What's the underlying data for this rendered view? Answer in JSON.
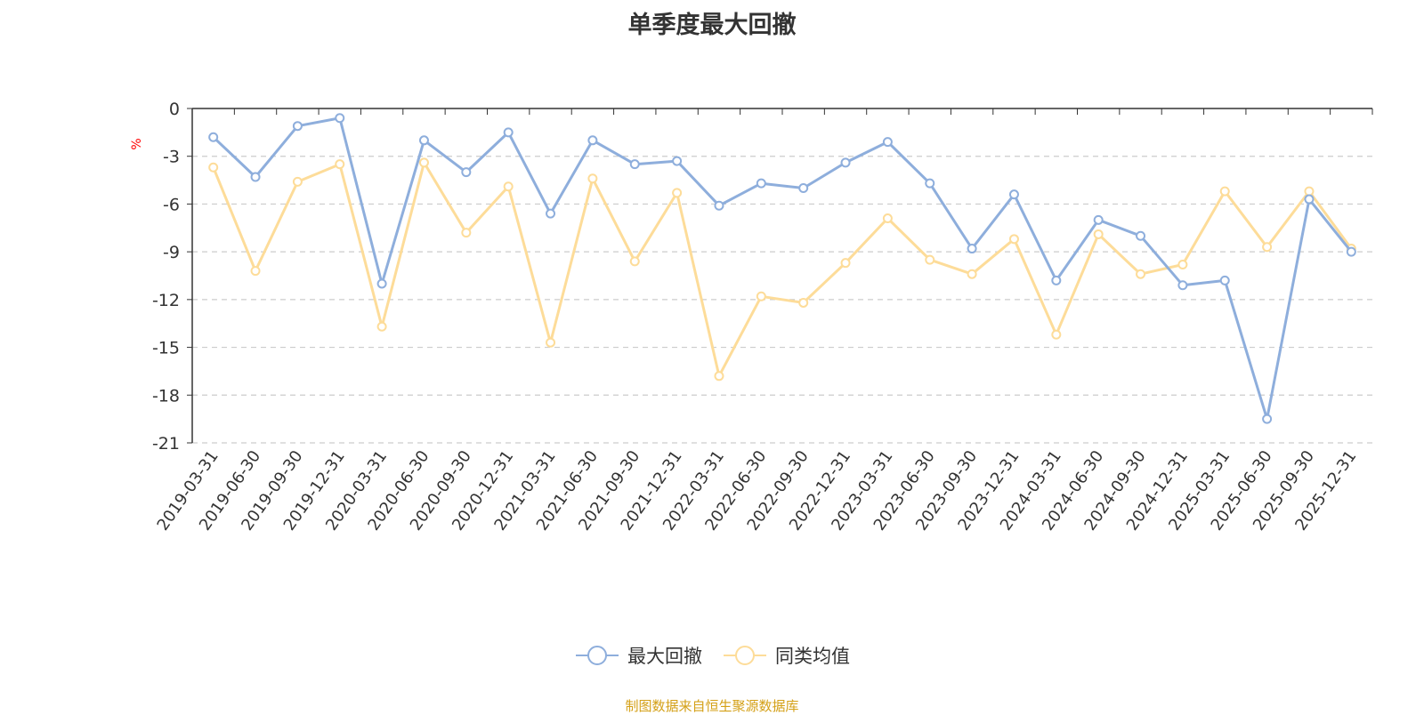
{
  "chart_data": {
    "type": "line",
    "title": "单季度最大回撤",
    "ylabel": "%",
    "xlabel": "",
    "ylim": [
      -21,
      0
    ],
    "yticks": [
      0,
      -3,
      -6,
      -9,
      -12,
      -15,
      -18,
      -21
    ],
    "grid": true,
    "legend_position": "bottom",
    "categories": [
      "2019-03-31",
      "2019-06-30",
      "2019-09-30",
      "2019-12-31",
      "2020-03-31",
      "2020-06-30",
      "2020-09-30",
      "2020-12-31",
      "2021-03-31",
      "2021-06-30",
      "2021-09-30",
      "2021-12-31",
      "2022-03-31",
      "2022-06-30",
      "2022-09-30",
      "2022-12-31",
      "2023-03-31",
      "2023-06-30",
      "2023-09-30",
      "2023-12-31",
      "2024-03-31",
      "2024-06-30",
      "2024-09-30",
      "2024-12-31",
      "2025-03-31",
      "2025-06-30",
      "2025-09-30",
      "2025-12-31"
    ],
    "series": [
      {
        "name": "最大回撤",
        "color": "#8eaedc",
        "values": [
          -1.8,
          -4.3,
          -1.1,
          -0.6,
          -11.0,
          -2.0,
          -4.0,
          -1.5,
          -6.6,
          -2.0,
          -3.5,
          -3.3,
          -6.1,
          -4.7,
          -5.0,
          -3.4,
          -2.1,
          -4.7,
          -8.8,
          -5.4,
          -10.8,
          -7.0,
          -8.0,
          -11.1,
          -10.8,
          -19.5,
          -5.7,
          -9.0
        ]
      },
      {
        "name": "同类均值",
        "color": "#fddc99",
        "values": [
          -3.7,
          -10.2,
          -4.6,
          -3.5,
          -13.7,
          -3.4,
          -7.8,
          -4.9,
          -14.7,
          -4.4,
          -9.6,
          -5.3,
          -16.8,
          -11.8,
          -12.2,
          -9.7,
          -6.9,
          -9.5,
          -10.4,
          -8.2,
          -14.2,
          -7.9,
          -10.4,
          -9.8,
          -5.2,
          -8.7,
          -5.2,
          -8.8
        ]
      }
    ]
  },
  "source_note": "制图数据来自恒生聚源数据库"
}
